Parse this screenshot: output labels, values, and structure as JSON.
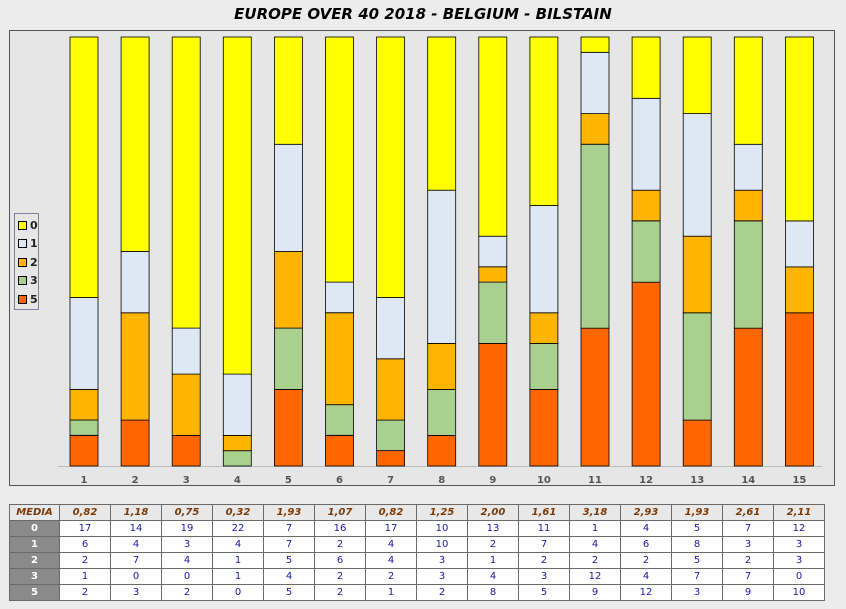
{
  "title": "EUROPE OVER 40 2018 - BELGIUM - BILSTAIN",
  "colors": {
    "0": "#ffff00",
    "1": "#dde8f4",
    "2": "#ffb400",
    "3": "#a9d08e",
    "5": "#ff6600"
  },
  "legend": [
    "0",
    "1",
    "2",
    "3",
    "5"
  ],
  "chart_data": {
    "type": "bar",
    "stacked": true,
    "percent": true,
    "title": "EUROPE OVER 40 2018 - BELGIUM - BILSTAIN",
    "categories": [
      "1",
      "2",
      "3",
      "4",
      "5",
      "6",
      "7",
      "8",
      "9",
      "10",
      "11",
      "12",
      "13",
      "14",
      "15"
    ],
    "stack_order_bottom_to_top": [
      "5",
      "3",
      "2",
      "1",
      "0"
    ],
    "series": [
      {
        "name": "0",
        "values": [
          17,
          14,
          19,
          22,
          7,
          16,
          17,
          10,
          13,
          11,
          1,
          4,
          5,
          7,
          12
        ]
      },
      {
        "name": "1",
        "values": [
          6,
          4,
          3,
          4,
          7,
          2,
          4,
          10,
          2,
          7,
          4,
          6,
          8,
          3,
          3
        ]
      },
      {
        "name": "2",
        "values": [
          2,
          7,
          4,
          1,
          5,
          6,
          4,
          3,
          1,
          2,
          2,
          2,
          5,
          2,
          3
        ]
      },
      {
        "name": "3",
        "values": [
          1,
          0,
          0,
          1,
          4,
          2,
          2,
          3,
          4,
          3,
          12,
          4,
          7,
          7,
          0
        ]
      },
      {
        "name": "5",
        "values": [
          2,
          3,
          2,
          0,
          5,
          2,
          1,
          2,
          8,
          5,
          9,
          12,
          3,
          9,
          10
        ]
      }
    ],
    "legend_position": "left"
  },
  "table": {
    "media_label": "MEDIA",
    "media": [
      "0,82",
      "1,18",
      "0,75",
      "0,32",
      "1,93",
      "1,07",
      "0,82",
      "1,25",
      "2,00",
      "1,61",
      "3,18",
      "2,93",
      "1,93",
      "2,61",
      "2,11"
    ],
    "rows": [
      {
        "label": "0",
        "values": [
          "17",
          "14",
          "19",
          "22",
          "7",
          "16",
          "17",
          "10",
          "13",
          "11",
          "1",
          "4",
          "5",
          "7",
          "12"
        ]
      },
      {
        "label": "1",
        "values": [
          "6",
          "4",
          "3",
          "4",
          "7",
          "2",
          "4",
          "10",
          "2",
          "7",
          "4",
          "6",
          "8",
          "3",
          "3"
        ]
      },
      {
        "label": "2",
        "values": [
          "2",
          "7",
          "4",
          "1",
          "5",
          "6",
          "4",
          "3",
          "1",
          "2",
          "2",
          "2",
          "5",
          "2",
          "3"
        ]
      },
      {
        "label": "3",
        "values": [
          "1",
          "0",
          "0",
          "1",
          "4",
          "2",
          "2",
          "3",
          "4",
          "3",
          "12",
          "4",
          "7",
          "7",
          "0"
        ]
      },
      {
        "label": "5",
        "values": [
          "2",
          "3",
          "2",
          "0",
          "5",
          "2",
          "1",
          "2",
          "8",
          "5",
          "9",
          "12",
          "3",
          "9",
          "10"
        ]
      }
    ]
  }
}
